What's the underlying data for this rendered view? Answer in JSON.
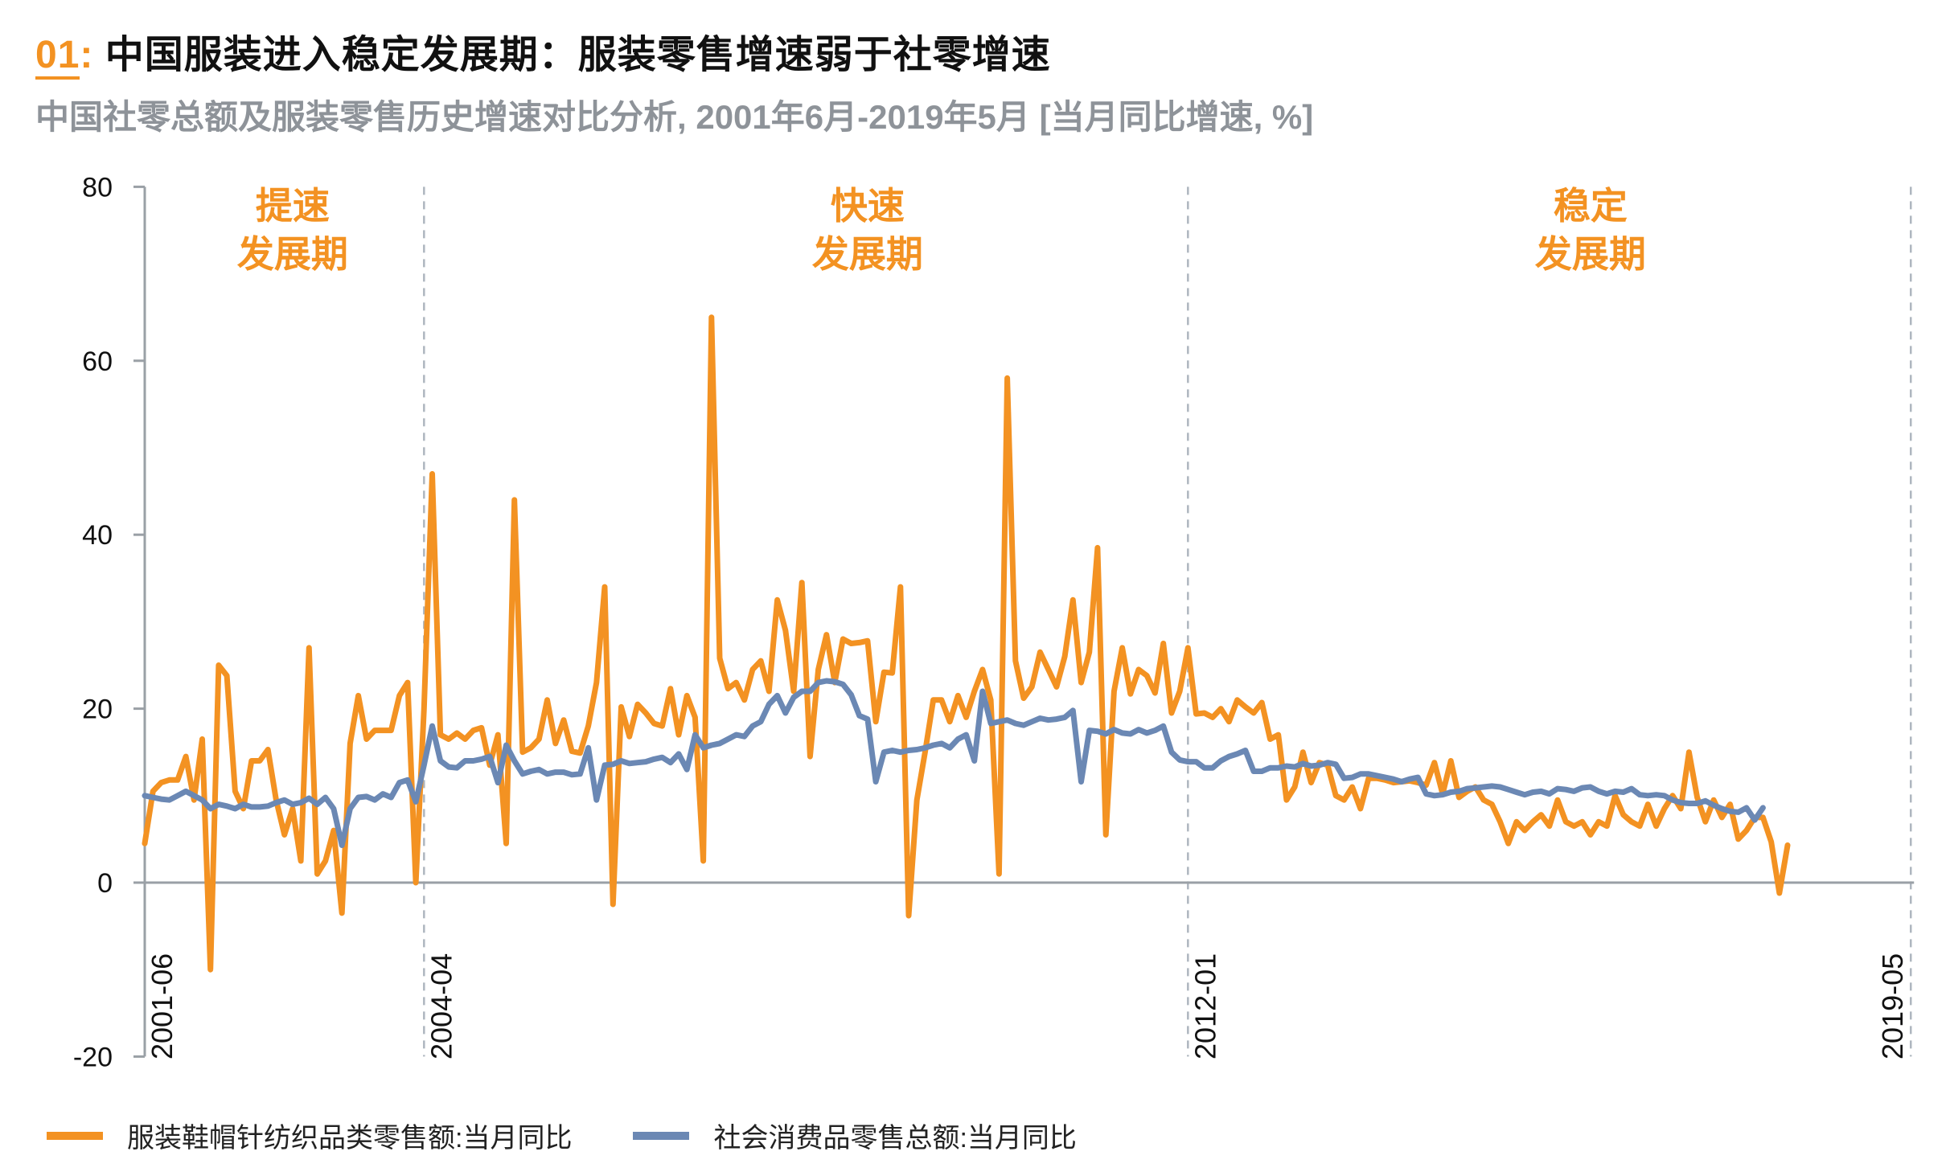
{
  "header": {
    "number": "01",
    "colon": ":",
    "title": "中国服装进入稳定发展期：服装零售增速弱于社零增速",
    "subtitle": "中国社零总额及服装零售历史增速对比分析, 2001年6月-2019年5月 [当月同比增速, %]"
  },
  "colors": {
    "apparel": "#F39222",
    "total": "#6B88B4",
    "axis": "#9AA0A6",
    "divider": "#AEB6BF",
    "period_label": "#F39222"
  },
  "periods": [
    {
      "line1": "提速",
      "line2": "发展期",
      "center_month": 18
    },
    {
      "line1": "快速",
      "line2": "发展期",
      "center_month": 88
    },
    {
      "line1": "稳定",
      "line2": "发展期",
      "center_month": 176
    }
  ],
  "chart_data": {
    "type": "line",
    "title": "中国社零总额及服装零售历史增速对比分析, 2001年6月-2019年5月",
    "xlabel": "",
    "ylabel": "当月同比增速, %",
    "ylim": [
      -20,
      80
    ],
    "yticks": [
      -20,
      0,
      20,
      40,
      60,
      80
    ],
    "x_start": "2001-06",
    "x_end": "2019-05",
    "x_tick_labels": [
      {
        "label": "2001-06",
        "month_index": 0
      },
      {
        "label": "2004-04",
        "month_index": 34
      },
      {
        "label": "2012-01",
        "month_index": 127
      },
      {
        "label": "2019-05",
        "month_index": 215
      }
    ],
    "divider_lines_month_index": [
      34,
      127,
      215
    ],
    "grid": false,
    "legend_position": "bottom",
    "series": [
      {
        "name": "服装鞋帽针纺织品类零售额:当月同比",
        "color": "#F39222",
        "values": [
          4.5,
          10.5,
          11.5,
          11.8,
          11.8,
          14.5,
          9.5,
          16.5,
          -10,
          25,
          23.8,
          10.5,
          8.5,
          14,
          14,
          15.3,
          9.5,
          5.5,
          8.5,
          2.5,
          27,
          1,
          2.5,
          6,
          -3.5,
          16,
          21.5,
          16.5,
          17.5,
          17.5,
          17.5,
          21.5,
          23,
          0,
          20,
          47,
          17,
          16.5,
          17.2,
          16.5,
          17.5,
          17.8,
          13.5,
          17,
          4.5,
          44,
          15,
          15.5,
          16.5,
          21,
          16,
          18.7,
          15.1,
          14.9,
          18,
          23,
          34,
          -2.5,
          20.2,
          16.8,
          20.5,
          19.5,
          18.3,
          18.0,
          22.3,
          17,
          21.5,
          19,
          2.5,
          65,
          25.8,
          22.3,
          23,
          21,
          24.5,
          25.5,
          22,
          32.5,
          29,
          22,
          34.5,
          14.5,
          24.5,
          28.5,
          23,
          28,
          27.5,
          27.6,
          27.8,
          18.5,
          24.2,
          24.1,
          34,
          -3.8,
          9.5,
          15,
          21,
          21,
          18.5,
          21.5,
          19,
          22,
          24.5,
          21,
          1,
          58,
          25.5,
          21.2,
          22.5,
          26.5,
          24.5,
          22.5,
          26,
          32.5,
          23,
          26.5,
          38.5,
          5.5,
          22,
          27,
          21.7,
          24.5,
          23.8,
          21.8,
          27.5,
          19.5,
          22,
          27
        ],
        "values_tail": [
          19.4,
          19.5,
          19,
          20,
          18.5,
          21,
          20.2,
          19.5,
          20.7,
          16.5,
          17,
          9.5,
          11,
          15,
          11.5,
          13.8,
          13.5,
          10,
          9.5,
          11,
          8.5,
          12,
          12,
          11.8,
          11.5,
          11.6,
          11.7,
          11.5,
          11.2,
          13.8,
          10.2,
          14,
          9.8,
          10.5,
          11,
          9.5,
          9,
          7,
          4.5,
          7,
          6,
          7,
          7.8,
          6.5,
          9.5,
          7,
          6.5,
          7,
          5.5,
          7,
          6.5,
          10,
          7.8,
          7,
          6.5,
          9,
          6.5,
          8.5,
          10,
          8.5,
          15,
          9.8,
          7,
          9.5,
          7.5,
          9,
          5,
          6,
          7.5,
          7.5,
          4.7,
          -1.2,
          4.3
        ]
      },
      {
        "name": "社会消费品零售总额:当月同比",
        "color": "#6B88B4",
        "values": [
          10,
          9.8,
          9.6,
          9.5,
          10,
          10.5,
          10,
          9.5,
          8.5,
          9,
          8.8,
          8.5,
          9,
          8.7,
          8.7,
          8.8,
          9.2,
          9.5,
          9.0,
          9.2,
          9.7,
          9,
          9.8,
          8.5,
          4.3,
          8.5,
          9.8,
          9.9,
          9.5,
          10.2,
          9.8,
          11.5,
          11.8,
          9.3,
          13.5,
          18,
          14,
          13.3,
          13.2,
          14,
          14,
          14.2,
          14.5,
          11.5,
          15.8,
          14,
          12.5,
          12.8,
          13.0,
          12.5,
          12.7,
          12.7,
          12.4,
          12.5,
          15.5,
          9.5,
          13.5,
          13.6,
          14,
          13.7,
          13.8,
          13.9,
          14.2,
          14.4,
          13.8,
          14.8,
          13,
          17,
          15.5,
          15.8,
          16,
          16.5,
          17,
          16.8,
          18,
          18.5,
          20.5,
          21.5,
          19.5,
          21.3,
          22,
          22,
          23,
          23.2,
          23.1,
          22.8,
          21.6,
          19.2,
          18.8,
          11.6,
          15,
          15.2,
          15,
          15.2,
          15.3,
          15.5,
          15.8,
          16,
          15.5,
          16.5,
          17,
          14,
          22,
          18.3,
          18.5,
          18.7,
          18.3,
          18.1,
          18.5,
          18.9,
          18.7,
          18.8,
          19.0,
          19.8,
          11.6,
          17.5,
          17.4,
          17.1,
          17.6,
          17.2,
          17.1,
          17.6,
          17.2,
          17.5,
          18
        ],
        "values_tail": [
          15,
          14.1,
          13.9,
          13.9,
          13.2,
          13.2,
          14,
          14.5,
          14.8,
          15.2,
          12.8,
          12.8,
          13.2,
          13.2,
          13.4,
          13.3,
          13.7,
          13.4,
          13.5,
          13.8,
          13.6,
          12.0,
          12.1,
          12.5,
          12.5,
          12.3,
          12.1,
          11.9,
          11.6,
          11.9,
          12.1,
          10.2,
          10,
          10.1,
          10.4,
          10.5,
          10.8,
          10.9,
          11,
          11.1,
          11,
          10.7,
          10.4,
          10.1,
          10.4,
          10.5,
          10.2,
          10.8,
          10.7,
          10.5,
          10.9,
          11,
          10.5,
          10.2,
          10.5,
          10.4,
          10.8,
          10.1,
          10,
          10.1,
          10,
          9.5,
          9.2,
          9.1,
          9.1,
          9.4,
          8.9,
          8.5,
          8.2,
          8.1,
          8.6,
          7.2,
          8.6
        ]
      }
    ]
  },
  "legend": {
    "items": [
      {
        "label": "服装鞋帽针纺织品类零售额:当月同比",
        "color": "#F39222"
      },
      {
        "label": "社会消费品零售总额:当月同比",
        "color": "#6B88B4"
      }
    ]
  }
}
